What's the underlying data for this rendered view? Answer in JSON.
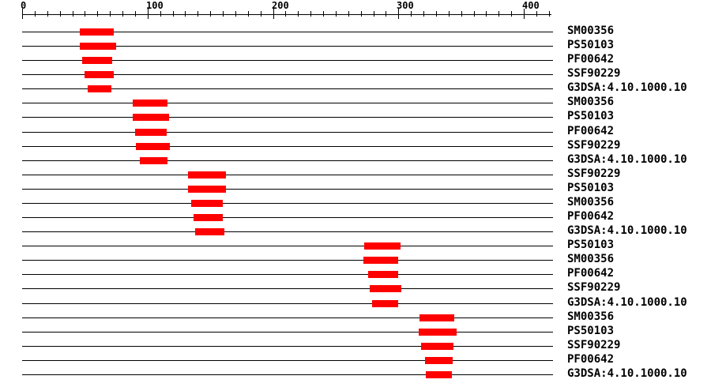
{
  "chart_data": {
    "type": "bar",
    "subtype": "horizontal-interval-ruler",
    "title": "",
    "xlabel": "",
    "ylabel": "",
    "xlim": [
      0,
      420
    ],
    "x_major_ticks": [
      0,
      100,
      200,
      300,
      400
    ],
    "x_minor_tick_step": 10,
    "grid": false,
    "legend": false,
    "colors": {
      "bar": "#ff0000",
      "axis": "#000000",
      "background": "#ffffff",
      "label": "#000000"
    },
    "rows": [
      {
        "label": "SM00356",
        "start": 46,
        "end": 73
      },
      {
        "label": "PS50103",
        "start": 46,
        "end": 75
      },
      {
        "label": "PF00642",
        "start": 48,
        "end": 72
      },
      {
        "label": "SSF90229",
        "start": 50,
        "end": 73
      },
      {
        "label": "G3DSA:4.10.1000.10",
        "start": 52,
        "end": 71
      },
      {
        "label": "SM00356",
        "start": 88,
        "end": 116
      },
      {
        "label": "PS50103",
        "start": 88,
        "end": 117
      },
      {
        "label": "PF00642",
        "start": 90,
        "end": 115
      },
      {
        "label": "SSF90229",
        "start": 91,
        "end": 118
      },
      {
        "label": "G3DSA:4.10.1000.10",
        "start": 94,
        "end": 116
      },
      {
        "label": "SSF90229",
        "start": 132,
        "end": 162
      },
      {
        "label": "PS50103",
        "start": 132,
        "end": 162
      },
      {
        "label": "SM00356",
        "start": 135,
        "end": 160
      },
      {
        "label": "PF00642",
        "start": 137,
        "end": 160
      },
      {
        "label": "G3DSA:4.10.1000.10",
        "start": 138,
        "end": 161
      },
      {
        "label": "PS50103",
        "start": 273,
        "end": 302
      },
      {
        "label": "SM00356",
        "start": 272,
        "end": 300
      },
      {
        "label": "PF00642",
        "start": 276,
        "end": 300
      },
      {
        "label": "SSF90229",
        "start": 277,
        "end": 302
      },
      {
        "label": "G3DSA:4.10.1000.10",
        "start": 279,
        "end": 300
      },
      {
        "label": "SM00356",
        "start": 317,
        "end": 345
      },
      {
        "label": "PS50103",
        "start": 316,
        "end": 346
      },
      {
        "label": "SSF90229",
        "start": 318,
        "end": 344
      },
      {
        "label": "PF00642",
        "start": 321,
        "end": 343
      },
      {
        "label": "G3DSA:4.10.1000.10",
        "start": 322,
        "end": 343
      }
    ]
  }
}
